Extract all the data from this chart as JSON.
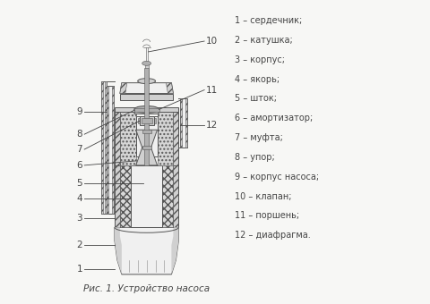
{
  "bg_color": "#f7f7f5",
  "line_color": "#555555",
  "legend_items": [
    "1 – сердечник;",
    "2 – катушка;",
    "3 – корпус;",
    "4 – якорь;",
    "5 – шток;",
    "6 – амортизатор;",
    "7 – муфта;",
    "8 – упор;",
    "9 – корпус насоса;",
    "10 – клапан;",
    "11 – поршень;",
    "12 – диафрагма."
  ],
  "caption": "Рис. 1. Устройство насоса",
  "label_fontsize": 7.0,
  "caption_fontsize": 7.5
}
